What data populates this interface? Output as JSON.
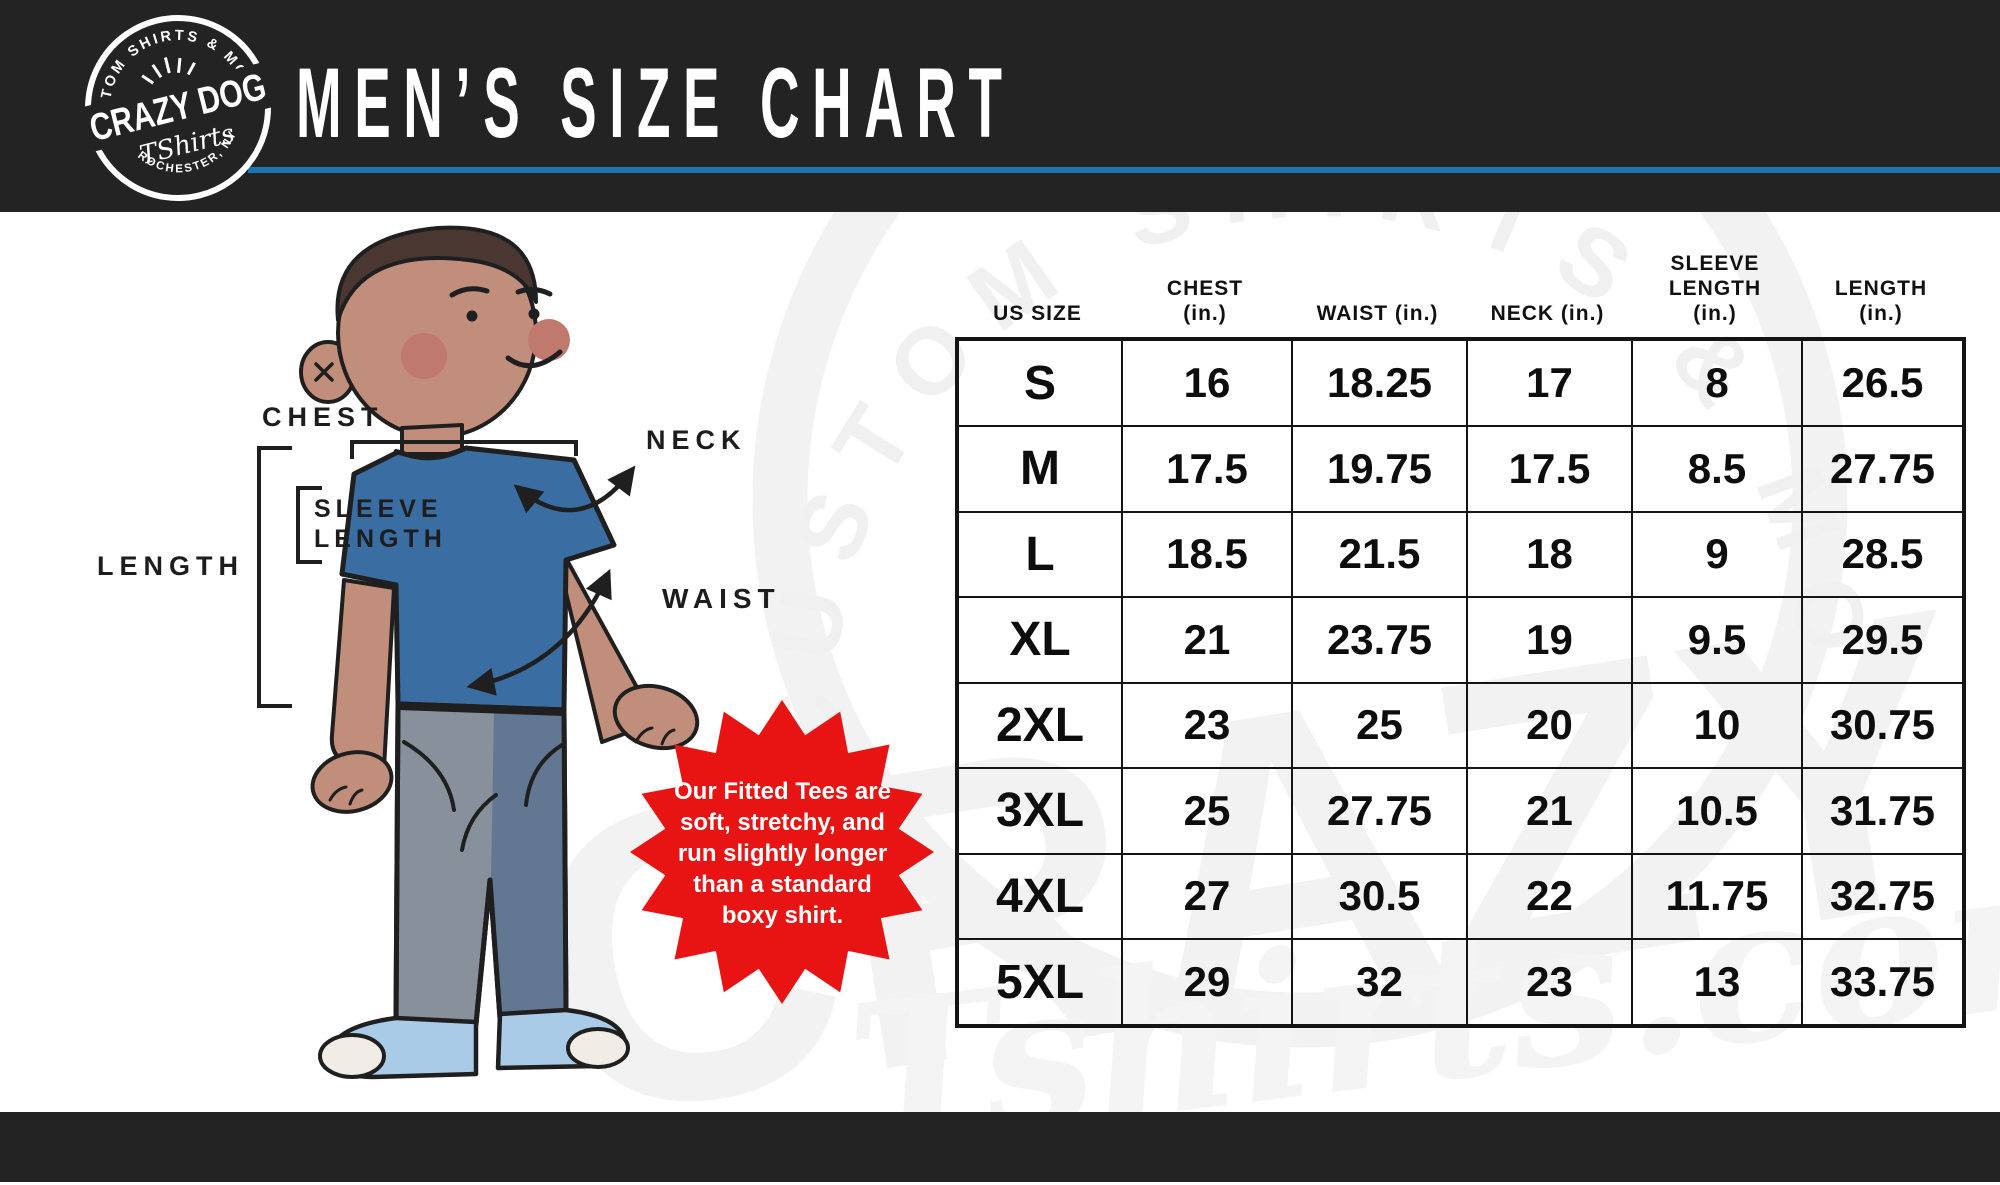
{
  "colors": {
    "bar_background": "#232323",
    "accent_blue_rule": "#1e74ae",
    "badge_red": "#e81313",
    "shirt_blue": "#3a6da1",
    "skin": "#c28e7c",
    "pants_gray": "#87909b",
    "shoe_blue": "#a9cbe8"
  },
  "header": {
    "title": "MEN’S SIZE CHART",
    "logo": {
      "tagline": "CUSTOM SHIRTS & MORE",
      "name": "CRAZY DOG",
      "sub": "TShirts",
      "location": "ROCHESTER, NY"
    }
  },
  "figure": {
    "labels": {
      "chest": "CHEST",
      "neck": "NECK",
      "sleeve": "SLEEVE\nLENGTH",
      "length": "LENGTH",
      "waist": "WAIST"
    }
  },
  "badge": {
    "text": "Our Fitted Tees are\nsoft, stretchy, and\nrun slightly longer\nthan a standard\nboxy shirt."
  },
  "watermark": {
    "arc": "CUSTOM SHIRTS & MORE",
    "block": "CRAZY",
    "script": "Tshirts.com"
  },
  "chart_data": {
    "type": "table",
    "title": "MEN'S SIZE CHART",
    "columns": [
      "US SIZE",
      "CHEST (in.)",
      "WAIST (in.)",
      "NECK (in.)",
      "SLEEVE LENGTH (in.)",
      "LENGTH (in.)"
    ],
    "column_lines": [
      [
        "US SIZE"
      ],
      [
        "CHEST",
        "(in.)"
      ],
      [
        "WAIST (in.)"
      ],
      [
        "NECK (in.)"
      ],
      [
        "SLEEVE",
        "LENGTH",
        "(in.)"
      ],
      [
        "LENGTH",
        "(in.)"
      ]
    ],
    "keys": [
      "size",
      "chest_in",
      "waist_in",
      "neck_in",
      "sleeve_length_in",
      "length_in"
    ],
    "rows": [
      {
        "size": "S",
        "chest_in": "16",
        "waist_in": "18.25",
        "neck_in": "17",
        "sleeve_length_in": "8",
        "length_in": "26.5"
      },
      {
        "size": "M",
        "chest_in": "17.5",
        "waist_in": "19.75",
        "neck_in": "17.5",
        "sleeve_length_in": "8.5",
        "length_in": "27.75"
      },
      {
        "size": "L",
        "chest_in": "18.5",
        "waist_in": "21.5",
        "neck_in": "18",
        "sleeve_length_in": "9",
        "length_in": "28.5"
      },
      {
        "size": "XL",
        "chest_in": "21",
        "waist_in": "23.75",
        "neck_in": "19",
        "sleeve_length_in": "9.5",
        "length_in": "29.5"
      },
      {
        "size": "2XL",
        "chest_in": "23",
        "waist_in": "25",
        "neck_in": "20",
        "sleeve_length_in": "10",
        "length_in": "30.75"
      },
      {
        "size": "3XL",
        "chest_in": "25",
        "waist_in": "27.75",
        "neck_in": "21",
        "sleeve_length_in": "10.5",
        "length_in": "31.75"
      },
      {
        "size": "4XL",
        "chest_in": "27",
        "waist_in": "30.5",
        "neck_in": "22",
        "sleeve_length_in": "11.75",
        "length_in": "32.75"
      },
      {
        "size": "5XL",
        "chest_in": "29",
        "waist_in": "32",
        "neck_in": "23",
        "sleeve_length_in": "13",
        "length_in": "33.75"
      }
    ]
  }
}
